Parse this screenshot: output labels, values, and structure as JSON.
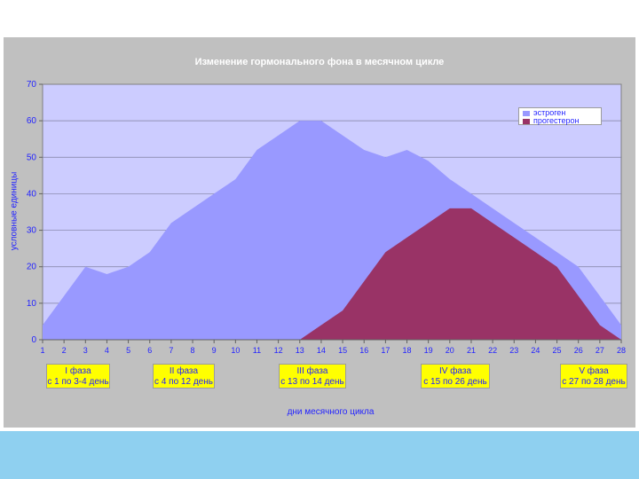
{
  "chart_data": {
    "type": "area",
    "title": "Изменение гормонального фона в месячном цикле",
    "xlabel": "дни месячного цикла",
    "ylabel": "условные единицы",
    "x": [
      1,
      2,
      3,
      4,
      5,
      6,
      7,
      8,
      9,
      10,
      11,
      12,
      13,
      14,
      15,
      16,
      17,
      18,
      19,
      20,
      21,
      22,
      23,
      24,
      25,
      26,
      27,
      28
    ],
    "xticks": [
      "1",
      "2",
      "3",
      "4",
      "5",
      "6",
      "7",
      "8",
      "9",
      "10",
      "11",
      "12",
      "13",
      "14",
      "15",
      "16",
      "17",
      "18",
      "19",
      "20",
      "21",
      "22",
      "23",
      "24",
      "25",
      "26",
      "27",
      "28"
    ],
    "ylim": [
      0,
      70
    ],
    "yticks": [
      "0",
      "10",
      "20",
      "30",
      "40",
      "50",
      "60",
      "70"
    ],
    "grid": true,
    "legend_position": "top-right",
    "series": [
      {
        "name": "эстроген",
        "color": "#9999ff",
        "values": [
          4,
          12,
          20,
          18,
          20,
          24,
          32,
          36,
          40,
          44,
          52,
          56,
          60,
          60,
          56,
          52,
          50,
          52,
          49,
          44,
          40,
          36,
          32,
          28,
          24,
          20,
          12,
          4
        ]
      },
      {
        "name": "прогестерон",
        "color": "#993366",
        "values": [
          0,
          0,
          0,
          0,
          0,
          0,
          0,
          0,
          0,
          0,
          0,
          0,
          0,
          4,
          8,
          16,
          24,
          28,
          32,
          36,
          36,
          32,
          28,
          24,
          20,
          12,
          4,
          0
        ]
      }
    ],
    "annotations": [
      {
        "line1": "I фаза",
        "line2": "с 1 по 3-4 день"
      },
      {
        "line1": "II фаза",
        "line2": "с 4 по 12 день"
      },
      {
        "line1": "III фаза",
        "line2": "с 13 по 14 день"
      },
      {
        "line1": "IV фаза",
        "line2": "с 15 по 26 день"
      },
      {
        "line1": "V фаза",
        "line2": "с 27 по 28 день"
      }
    ]
  },
  "colors": {
    "frame": "#c0c0c0",
    "plot_area": "#ccccff",
    "label_text": "#2323ff",
    "title_text": "#ffffff",
    "grid": "#8080a0",
    "annotation_fill": "#ffff00",
    "bottom_band": "#8fd0f0"
  }
}
